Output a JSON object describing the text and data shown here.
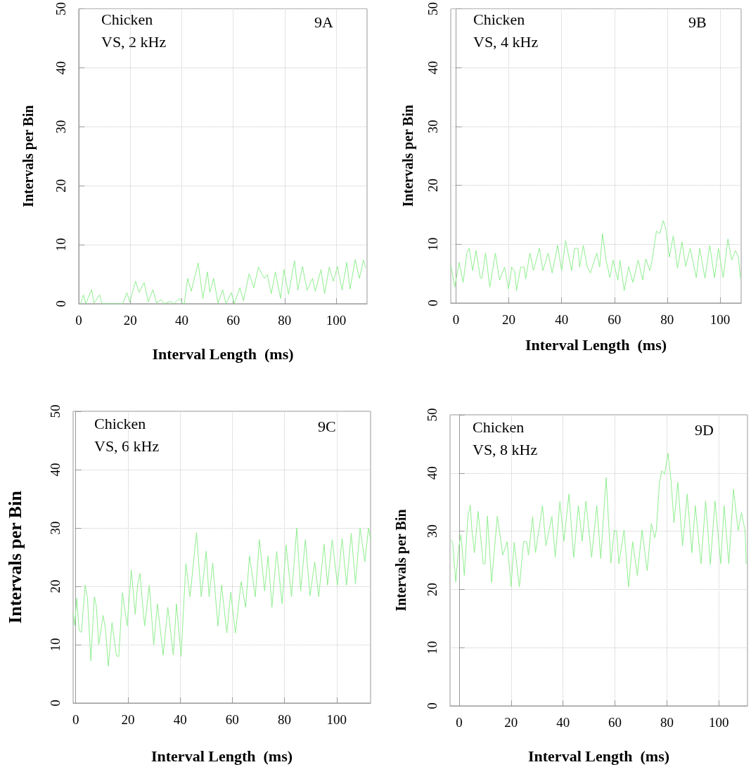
{
  "chart_data": [
    {
      "type": "line",
      "xlabel": "Interval Length  (ms)",
      "ylabel": "Intervals per Bin",
      "annotations": [
        "Chicken",
        "VS, 2 kHz",
        "9A"
      ],
      "grid": true,
      "xlim": [
        0,
        112
      ],
      "ylim": [
        0,
        50
      ],
      "xticks": [
        0,
        20,
        40,
        60,
        80,
        100
      ],
      "yticks": [
        0,
        10,
        20,
        30,
        40,
        50
      ],
      "series": [
        {
          "color": "#90ee90",
          "x": [
            0.7,
            1.8,
            2.7,
            5.0,
            5.9,
            8.1,
            9.0,
            17.1,
            18.7,
            19.8,
            22.1,
            23.4,
            25.4,
            27.0,
            28.8,
            30.2,
            32.0,
            33.3,
            35.6,
            36.9,
            39.2,
            40.4,
            41.0,
            42.3,
            43.7,
            46.4,
            48.2,
            50.0,
            50.9,
            52.4,
            54.1,
            55.9,
            57.2,
            59.3,
            60.4,
            62.6,
            64.0,
            66.2,
            68.0,
            69.8,
            72.1,
            73.2,
            74.8,
            76.4,
            78.4,
            79.7,
            81.5,
            83.8,
            85.1,
            86.9,
            88.7,
            90.8,
            91.9,
            94.1,
            95.5,
            97.3,
            98.9,
            100.5,
            102.3,
            104.1,
            105.4,
            107.4,
            109.0,
            110.6,
            111.5
          ],
          "values": [
            0,
            1.5,
            0,
            2.4,
            0.1,
            1.5,
            0,
            0,
            1.9,
            0.3,
            3.8,
            1.9,
            3.6,
            0.3,
            2.4,
            0.1,
            0.7,
            0,
            0.4,
            0,
            0.9,
            0,
            0,
            4.3,
            2.1,
            6.9,
            0.9,
            5.4,
            1.9,
            4.3,
            0.1,
            2.4,
            0,
            1.9,
            0,
            2.7,
            0.5,
            5.1,
            2.7,
            6.2,
            4.3,
            5.0,
            1.7,
            5.4,
            0.9,
            5.8,
            1.6,
            7.3,
            2.3,
            6.3,
            2.3,
            4.3,
            2.1,
            5.8,
            1.7,
            6.2,
            3.8,
            6.3,
            2.3,
            7.0,
            2.5,
            7.5,
            4.3,
            7.4,
            6.1
          ]
        }
      ]
    },
    {
      "type": "line",
      "xlabel": "Interval Length  (ms)",
      "ylabel": "Intervals per Bin",
      "annotations": [
        "Chicken",
        "VS, 4 kHz",
        "9B"
      ],
      "grid": true,
      "xlim": [
        -2,
        108
      ],
      "ylim": [
        0,
        50
      ],
      "xticks": [
        0,
        20,
        40,
        60,
        80,
        100
      ],
      "yticks": [
        0,
        10,
        20,
        30,
        40,
        50
      ],
      "series": [
        {
          "color": "#90ee90",
          "x": [
            -1.9,
            -0.5,
            1.2,
            2.7,
            4.1,
            5.0,
            5.7,
            6.3,
            7.6,
            9.2,
            9.8,
            11.2,
            12.8,
            14.9,
            16.5,
            18.4,
            19.9,
            21.1,
            22.3,
            22.9,
            24.5,
            25.8,
            26.4,
            28.0,
            29.3,
            31.6,
            32.9,
            34.9,
            36.4,
            38.5,
            40.0,
            41.5,
            43.8,
            44.9,
            46.2,
            46.8,
            48.2,
            49.7,
            50.9,
            53.3,
            54.4,
            55.5,
            56.8,
            58.3,
            59.5,
            61.3,
            62.1,
            63.7,
            65.4,
            67.0,
            69.0,
            70.7,
            71.9,
            73.4,
            74.3,
            75.9,
            77.2,
            78.5,
            79.4,
            80.8,
            82.3,
            83.9,
            85.6,
            87.0,
            88.7,
            91.0,
            92.3,
            94.3,
            96.1,
            97.9,
            99.4,
            101.2,
            103.0,
            104.4,
            105.9,
            106.9,
            107.8
          ],
          "values": [
            6.3,
            2.7,
            6.9,
            3.5,
            8.5,
            9.3,
            7.3,
            5.5,
            8.9,
            4.3,
            4.2,
            8.5,
            2.7,
            8.5,
            3.9,
            6.1,
            2.4,
            6.1,
            5.3,
            2.1,
            6.1,
            6.1,
            4.1,
            8.5,
            5.5,
            9.3,
            5.5,
            8.5,
            5.1,
            9.8,
            5.5,
            10.6,
            5.5,
            9.3,
            9.3,
            6.1,
            9.8,
            6.1,
            5.1,
            8.5,
            6.1,
            11.8,
            7.3,
            4.3,
            7.3,
            3.9,
            7.3,
            2.1,
            6.2,
            3.5,
            7.3,
            3.9,
            7.5,
            5.5,
            7.3,
            12.2,
            11.8,
            14.0,
            12.8,
            7.8,
            11.4,
            5.9,
            10.4,
            6.2,
            9.3,
            4.3,
            9.3,
            4.2,
            9.8,
            4.3,
            9.3,
            4.3,
            10.9,
            7.3,
            8.9,
            7.9,
            4.1
          ]
        }
      ]
    },
    {
      "type": "line",
      "xlabel": "Interval Length  (ms)",
      "ylabel": "Intervals per Bin",
      "annotations": [
        "Chicken",
        "VS, 6 kHz",
        "9C"
      ],
      "grid": true,
      "xlim": [
        -1,
        113
      ],
      "ylim": [
        0,
        50
      ],
      "xticks": [
        0,
        20,
        40,
        60,
        80,
        100
      ],
      "yticks": [
        0,
        10,
        20,
        30,
        40,
        50
      ],
      "series": [
        {
          "color": "#90ee90",
          "x": [
            -0.9,
            -0.4,
            0.4,
            1.3,
            2.2,
            2.9,
            3.6,
            4.5,
            5.8,
            7.1,
            7.9,
            8.8,
            10.5,
            11.4,
            12.5,
            13.9,
            15.6,
            16.5,
            17.9,
            19.7,
            21.3,
            22.8,
            23.7,
            24.6,
            26.4,
            28.2,
            29.9,
            31.3,
            33.5,
            35.3,
            37.4,
            38.6,
            40.4,
            42.2,
            43.8,
            46.3,
            48.1,
            50.0,
            51.1,
            52.5,
            54.5,
            55.9,
            57.9,
            59.4,
            61.2,
            63.4,
            65.1,
            66.6,
            68.8,
            70.4,
            72.4,
            73.7,
            75.2,
            77.0,
            79.1,
            80.6,
            82.7,
            84.7,
            86.2,
            88.0,
            89.8,
            91.6,
            93.1,
            95.2,
            96.5,
            98.3,
            100.3,
            102.1,
            103.8,
            105.6,
            107.2,
            109.0,
            110.8,
            112.2,
            113.0
          ],
          "values": [
            15.2,
            13.3,
            18.0,
            12.4,
            12.1,
            16.2,
            20.2,
            18.0,
            7.2,
            18.2,
            16.6,
            10.0,
            15.0,
            12.6,
            6.3,
            13.8,
            8.1,
            8.0,
            18.9,
            13.2,
            22.8,
            15.2,
            20.2,
            22.2,
            13.2,
            20.2,
            10.0,
            17.0,
            8.2,
            16.4,
            8.2,
            17.0,
            8.0,
            23.9,
            18.2,
            29.2,
            18.2,
            26.0,
            18.2,
            24.0,
            13.2,
            20.2,
            12.0,
            19.0,
            12.0,
            20.8,
            16.4,
            25.2,
            18.2,
            28.0,
            19.2,
            25.2,
            16.4,
            26.0,
            17.0,
            27.1,
            18.2,
            30.0,
            19.2,
            28.0,
            18.4,
            24.2,
            18.2,
            27.2,
            20.2,
            28.0,
            20.2,
            28.2,
            20.2,
            29.1,
            20.4,
            30.0,
            24.2,
            30.0,
            28.0
          ]
        }
      ]
    },
    {
      "type": "line",
      "xlabel": "Interval Length  (ms)",
      "ylabel": "Intervals per Bin",
      "annotations": [
        "Chicken",
        "VS, 8 kHz",
        "9D"
      ],
      "grid": true,
      "xlim": [
        -3.5,
        111
      ],
      "ylim": [
        0,
        50
      ],
      "xticks": [
        0,
        20,
        40,
        60,
        80,
        100
      ],
      "yticks": [
        0,
        10,
        20,
        30,
        40,
        50
      ],
      "series": [
        {
          "color": "#90ee90",
          "x": [
            -3.1,
            -2.5,
            -1.3,
            -0.2,
            0.7,
            2.0,
            3.4,
            4.3,
            4.9,
            5.9,
            7.3,
            9.3,
            10.0,
            10.9,
            12.5,
            14.7,
            16.8,
            18.5,
            20.0,
            21.2,
            23.2,
            24.8,
            26.0,
            26.7,
            28.3,
            29.4,
            32.1,
            33.4,
            35.7,
            37.0,
            38.8,
            40.3,
            42.3,
            44.1,
            45.9,
            47.4,
            48.8,
            51.0,
            53.0,
            54.5,
            56.6,
            58.4,
            59.7,
            60.6,
            61.5,
            63.5,
            65.2,
            66.8,
            68.6,
            70.4,
            72.4,
            74.0,
            75.3,
            75.9,
            77.1,
            78.0,
            79.1,
            80.4,
            81.6,
            82.7,
            84.2,
            86.0,
            87.8,
            89.6,
            90.9,
            93.1,
            94.9,
            96.7,
            98.5,
            100.7,
            102.0,
            103.8,
            105.6,
            107.4,
            108.7,
            110.1,
            110.5
          ],
          "values": [
            28.5,
            28.1,
            21.3,
            27.1,
            29.4,
            22.4,
            32.6,
            34.5,
            30.3,
            26.3,
            33.4,
            24.4,
            24.4,
            32.6,
            21.2,
            32.6,
            25.9,
            28.2,
            20.5,
            28.1,
            20.4,
            28.2,
            28.2,
            25.9,
            32.5,
            26.3,
            34.4,
            27.5,
            32.5,
            25.5,
            35.1,
            28.3,
            36.4,
            25.5,
            34.4,
            28.3,
            35.2,
            25.5,
            34.4,
            25.3,
            39.2,
            24.5,
            30.1,
            30.1,
            24.4,
            30.2,
            20.4,
            28.2,
            22.4,
            30.2,
            23.2,
            31.3,
            28.9,
            30.2,
            38.2,
            40.4,
            39.8,
            43.4,
            38.6,
            31.4,
            38.4,
            27.5,
            36.4,
            26.3,
            34.4,
            24.4,
            35.2,
            24.3,
            35.2,
            24.4,
            34.4,
            24.4,
            37.2,
            30.1,
            33.2,
            30.0,
            24.4
          ]
        }
      ]
    }
  ]
}
